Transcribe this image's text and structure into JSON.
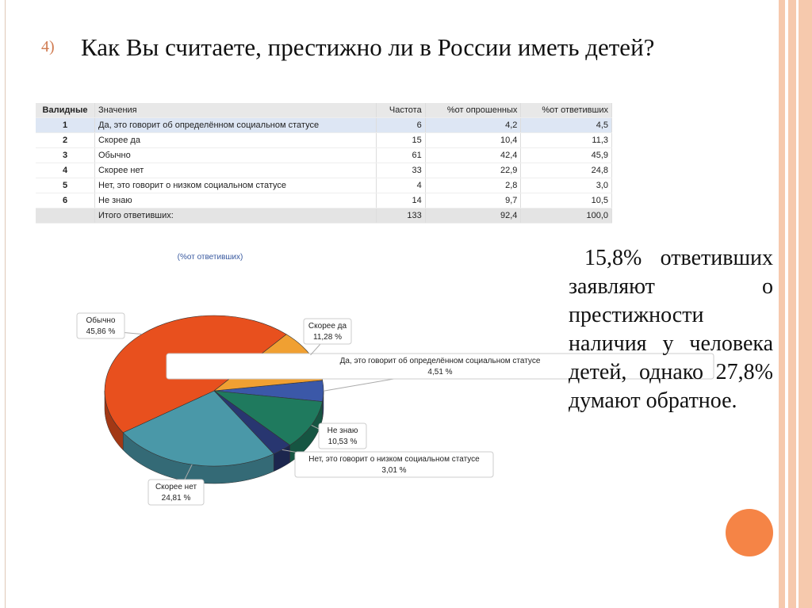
{
  "slide": {
    "number": "4)",
    "title": "Как Вы считаете, престижно ли в России иметь детей?",
    "text": "15,8% ответивших заявляют о престижности наличия у человека детей, однако 27,8% думают обратное."
  },
  "table": {
    "header": [
      "Валидные",
      "Значения",
      "Частота",
      "%от опрошенных",
      "%от ответивших"
    ],
    "rows": [
      [
        "1",
        "Да, это говорит об определённом социальном статусе",
        "6",
        "4,2",
        "4,5"
      ],
      [
        "2",
        "Скорее да",
        "15",
        "10,4",
        "11,3"
      ],
      [
        "3",
        "Обычно",
        "61",
        "42,4",
        "45,9"
      ],
      [
        "4",
        "Скорее нет",
        "33",
        "22,9",
        "24,8"
      ],
      [
        "5",
        "Нет, это говорит о низком социальном статусе",
        "4",
        "2,8",
        "3,0"
      ],
      [
        "6",
        "Не знаю",
        "14",
        "9,7",
        "10,5"
      ]
    ],
    "total": [
      "Итого ответивших:",
      "133",
      "92,4",
      "100,0"
    ]
  },
  "chart_data": {
    "type": "pie",
    "title": "(%от ответивших)",
    "categories": [
      "Да, это говорит об определённом социальном статусе",
      "Не знаю",
      "Нет, это говорит о низком социальном статусе",
      "Скорее нет",
      "Обычно",
      "Скорее да"
    ],
    "values": [
      4.51,
      10.53,
      3.01,
      24.81,
      45.86,
      11.28
    ],
    "value_labels": [
      "4,51 %",
      "10,53 %",
      "3,01 %",
      "24,81 %",
      "45,86 %",
      "11,28 %"
    ],
    "colors": [
      "#3b58a8",
      "#1f7a5e",
      "#283670",
      "#4a98a8",
      "#e8501e",
      "#f0a032"
    ]
  }
}
